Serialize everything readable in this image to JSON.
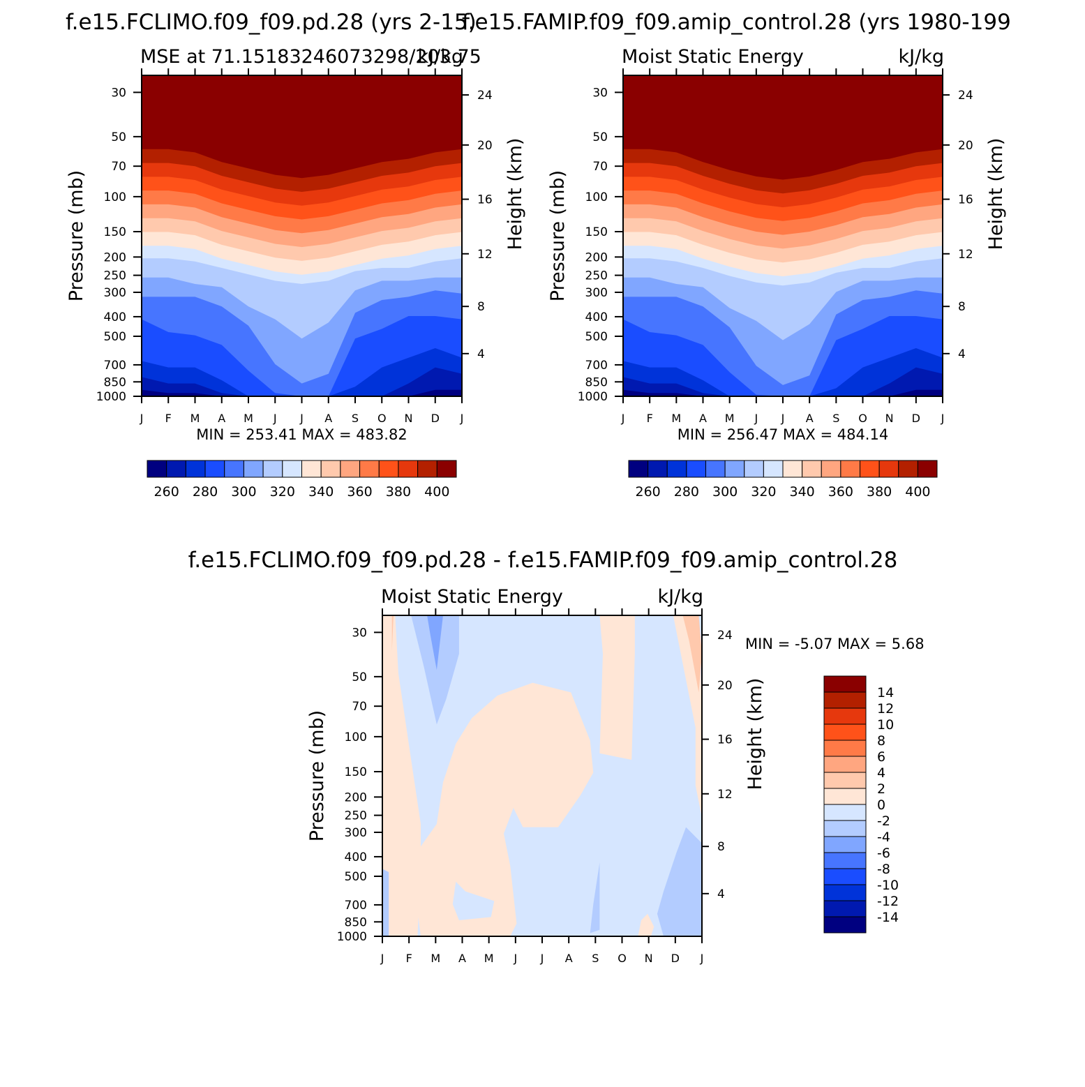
{
  "chart_data": [
    {
      "type": "heatmap",
      "id": "p1",
      "title": "f.e15.FCLIMO.f09_f09.pd.28 (yrs 2-15)",
      "subtitle_left": "MSE at 71.15183246073298/203.75",
      "subtitle_right": "kJ/kg",
      "ylabel": "Pressure (mb)",
      "ylabel_right": "Height (km)",
      "x_categories": [
        "J",
        "F",
        "M",
        "A",
        "M",
        "J",
        "J",
        "A",
        "S",
        "O",
        "N",
        "D",
        "J"
      ],
      "y_ticks": [
        "30",
        "50",
        "70",
        "100",
        "150",
        "200",
        "250",
        "300",
        "400",
        "500",
        "700",
        "850",
        "1000"
      ],
      "y_right_ticks": [
        "24",
        "20",
        "16",
        "12",
        "8",
        "4"
      ],
      "stats": "MIN = 253.41  MAX = 483.82",
      "min": 253.41,
      "max": 483.82,
      "colorbar": {
        "levels": [
          255,
          260,
          265,
          270,
          275,
          280,
          285,
          290,
          295,
          300,
          305,
          310,
          315,
          320,
          325,
          330,
          335,
          340,
          345,
          350,
          355,
          360,
          365,
          370,
          375,
          380,
          385,
          390,
          395,
          400
        ],
        "labels": [
          "260",
          "280",
          "300",
          "320",
          "340",
          "360",
          "380",
          "400"
        ]
      }
    },
    {
      "type": "heatmap",
      "id": "p2",
      "title": "f.e15.FAMIP.f09_f09.amip_control.28 (yrs 1980-199",
      "subtitle_left": "Moist Static Energy",
      "subtitle_right": "kJ/kg",
      "ylabel": "Pressure (mb)",
      "ylabel_right": "Height (km)",
      "x_categories": [
        "J",
        "F",
        "M",
        "A",
        "M",
        "J",
        "J",
        "A",
        "S",
        "O",
        "N",
        "D",
        "J"
      ],
      "y_ticks": [
        "30",
        "50",
        "70",
        "100",
        "150",
        "200",
        "250",
        "300",
        "400",
        "500",
        "700",
        "850",
        "1000"
      ],
      "y_right_ticks": [
        "24",
        "20",
        "16",
        "12",
        "8",
        "4"
      ],
      "stats": "MIN = 256.47  MAX = 484.14",
      "min": 256.47,
      "max": 484.14,
      "colorbar": {
        "labels": [
          "260",
          "280",
          "300",
          "320",
          "340",
          "360",
          "380",
          "400"
        ]
      }
    },
    {
      "type": "heatmap",
      "id": "p3",
      "title": "f.e15.FCLIMO.f09_f09.pd.28 - f.e15.FAMIP.f09_f09.amip_control.28",
      "subtitle_left": "Moist Static Energy",
      "subtitle_right": "kJ/kg",
      "ylabel": "Pressure (mb)",
      "ylabel_right": "Height (km)",
      "x_categories": [
        "J",
        "F",
        "M",
        "A",
        "M",
        "J",
        "J",
        "A",
        "S",
        "O",
        "N",
        "D",
        "J"
      ],
      "y_ticks": [
        "30",
        "50",
        "70",
        "100",
        "150",
        "200",
        "250",
        "300",
        "400",
        "500",
        "700",
        "850",
        "1000"
      ],
      "y_right_ticks": [
        "24",
        "20",
        "16",
        "12",
        "8",
        "4"
      ],
      "stats": "MIN =   -5.07  MAX =    5.68",
      "min": -5.07,
      "max": 5.68,
      "colorbar": {
        "labels": [
          "14",
          "12",
          "10",
          "8",
          "6",
          "4",
          "2",
          "0",
          "-2",
          "-4",
          "-6",
          "-8",
          "-10",
          "-12",
          "-14"
        ]
      }
    }
  ],
  "colors": {
    "scale": [
      "#000080",
      "#0019b0",
      "#0033d9",
      "#1a4dff",
      "#4775ff",
      "#80a6ff",
      "#b3ccff",
      "#d6e6ff",
      "#ffe6d6",
      "#ffc9ad",
      "#ffa680",
      "#ff7a47",
      "#ff5219",
      "#e6380d",
      "#b32000",
      "#8a0000"
    ]
  }
}
